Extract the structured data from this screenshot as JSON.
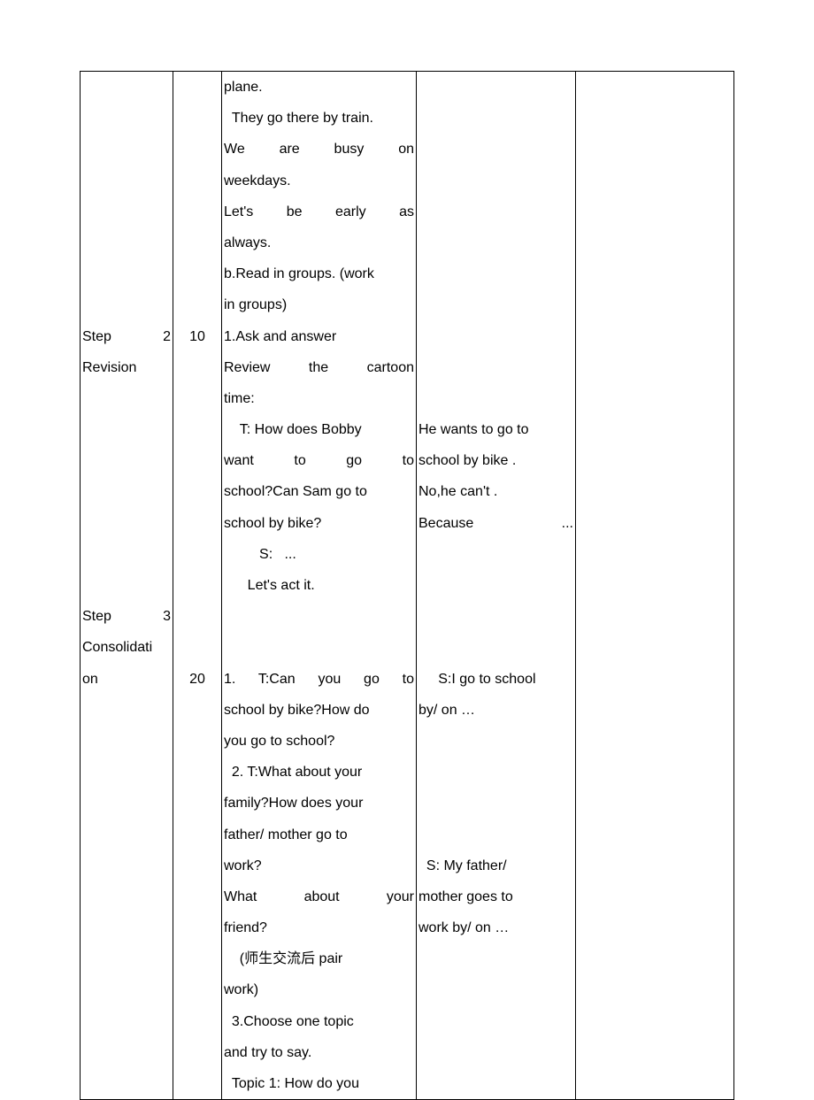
{
  "rows": [
    {
      "step_lines": [
        "",
        "",
        "",
        "",
        "",
        "",
        "",
        "",
        "Step      2",
        "Revision",
        "",
        "",
        "",
        "",
        "",
        "",
        "",
        "Step      3",
        "Consolidati",
        "on"
      ],
      "time_lines": [
        "",
        "",
        "",
        "",
        "",
        "",
        "",
        "",
        "10",
        "",
        "",
        "",
        "",
        "",
        "",
        "",
        "",
        "",
        "",
        "20"
      ],
      "col3_lines": [
        "plane.",
        "  They go there by train.",
        "We    are    busy    on",
        "weekdays.",
        "Let's    be    early    as",
        "always.",
        "b.Read in groups. (work",
        "in groups)",
        "1.Ask and answer",
        "  Review  the  cartoon",
        "time:",
        "    T: How does Bobby",
        "want    to    go    to",
        "school?Can Sam go to",
        "school by bike?",
        "         S:   ...",
        "      Let's act it.",
        "",
        "",
        "1.  T:Can  you  go  to",
        "school by bike?How do",
        "you go to school?",
        "  2. T:What about your",
        "family?How does your",
        "father/ mother go to",
        "work?",
        "     What  about  your",
        "friend?",
        "    (师生交流后 pair",
        "work)",
        "  3.Choose one topic",
        "and try to say.",
        "  Topic 1: How do you"
      ],
      "col4_lines": [
        "",
        "",
        "",
        "",
        "",
        "",
        "",
        "",
        "",
        "",
        "",
        "He wants to go to",
        "school by bike .",
        "No,he can't .",
        "Because     ...",
        "",
        "",
        "",
        "",
        "     S:I go to school",
        "by/ on …",
        "",
        "",
        "",
        "",
        "  S: My father/",
        "mother goes to",
        "work by/ on …"
      ]
    }
  ],
  "colors": {
    "border": "#000000",
    "background": "#ffffff",
    "text": "#000000"
  },
  "font": {
    "size_pt": 12,
    "line_height": 2.2,
    "family": "Arial"
  }
}
